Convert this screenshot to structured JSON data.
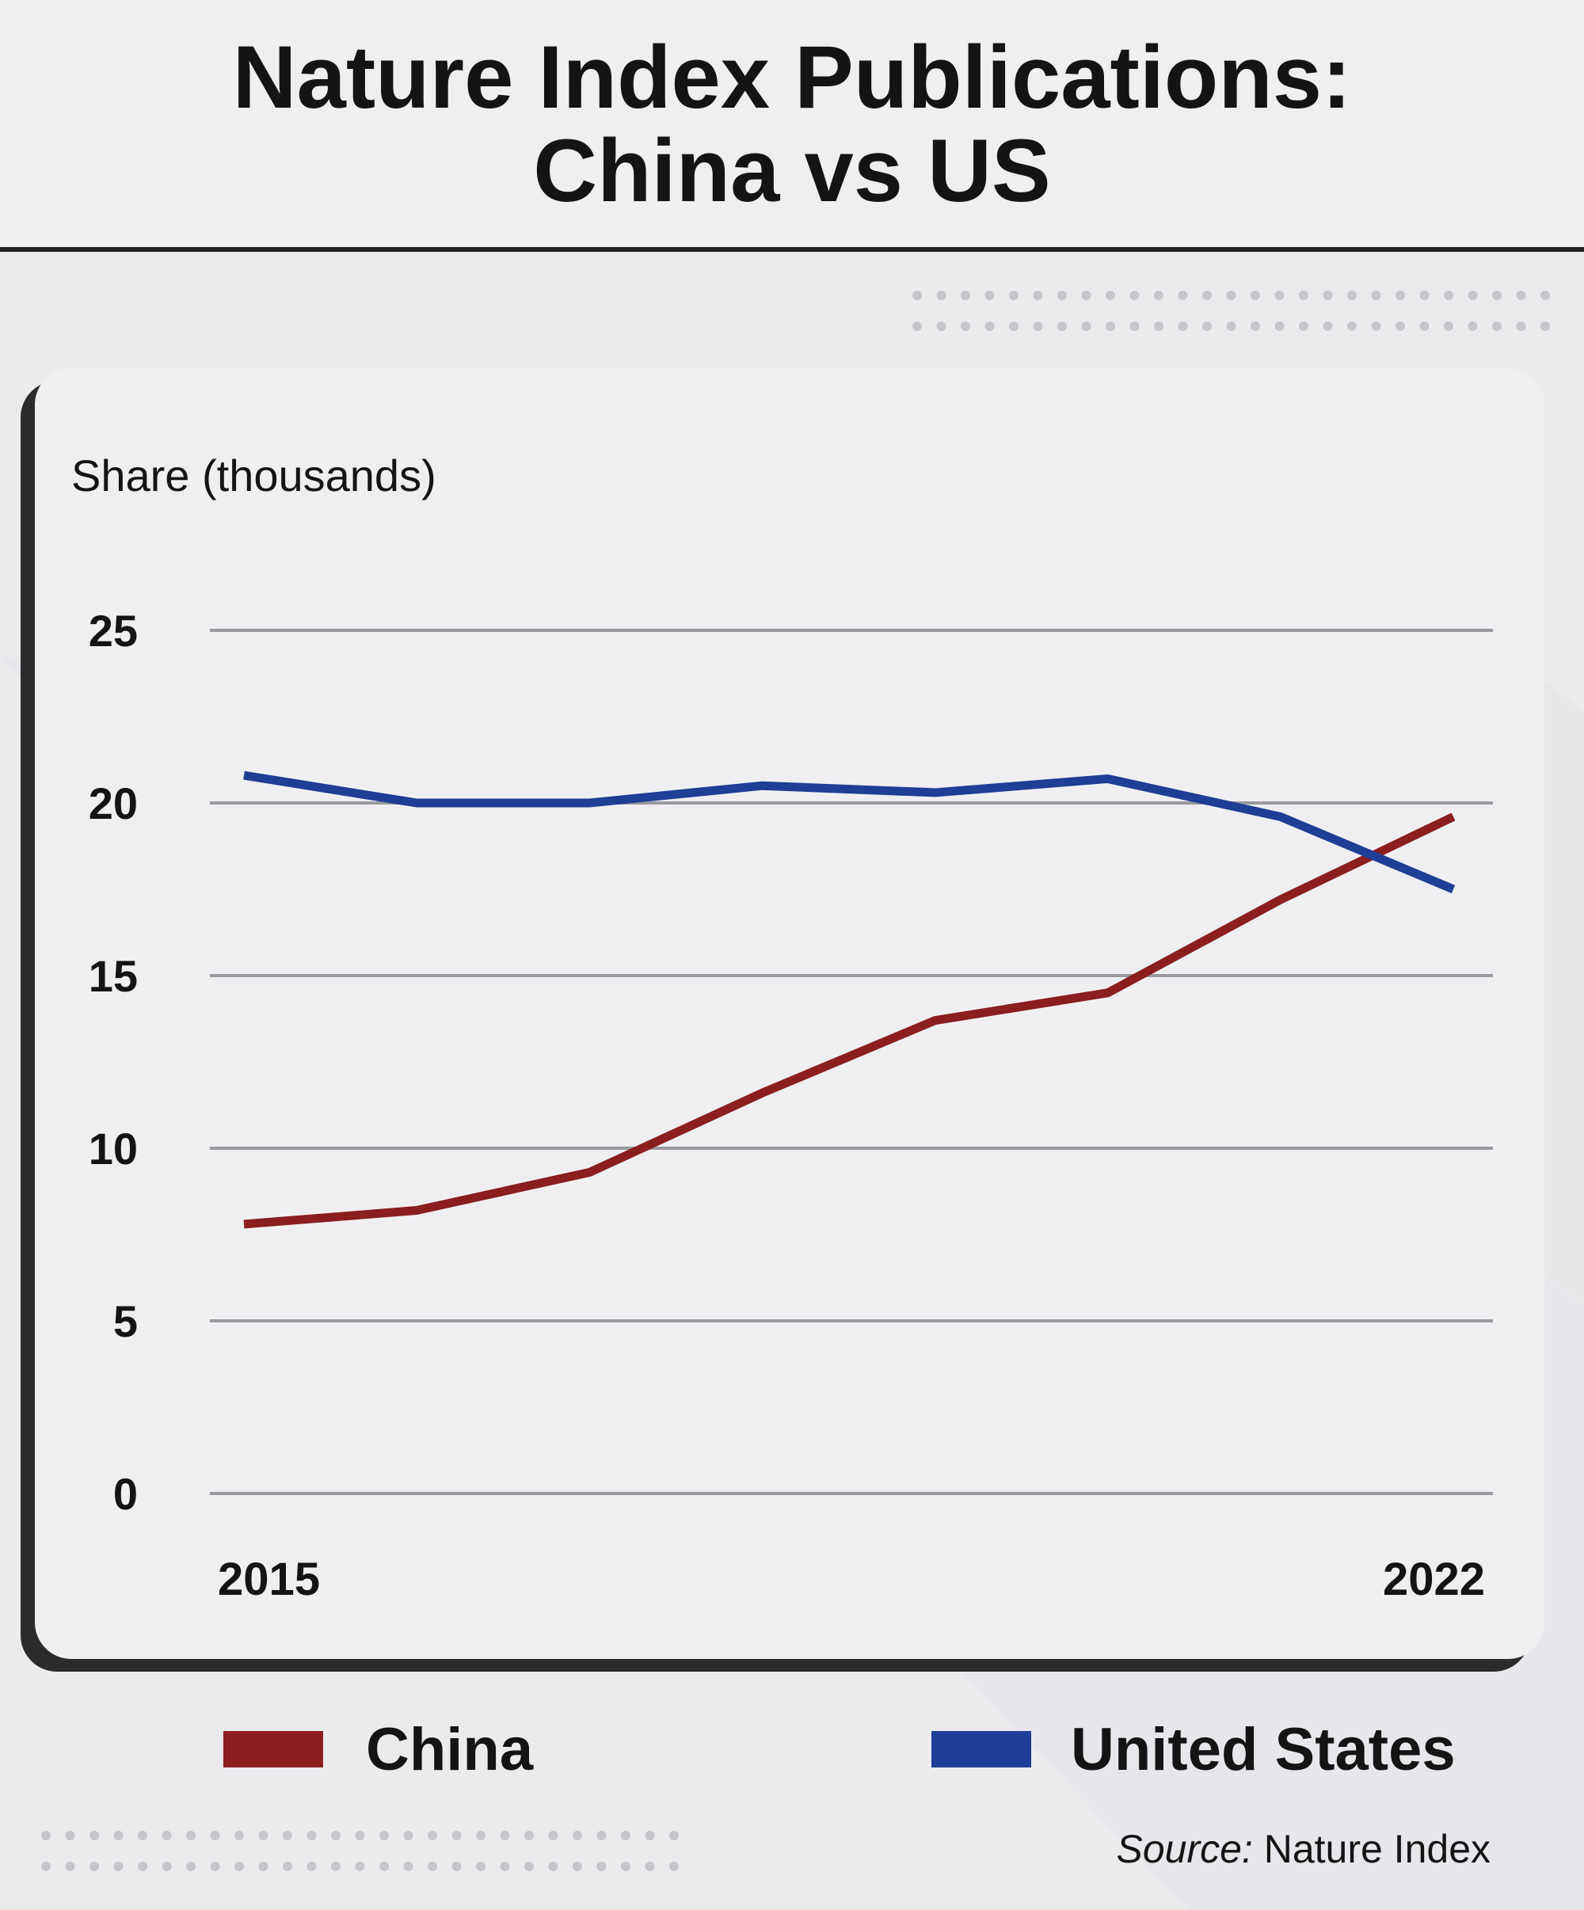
{
  "title_lines": [
    "Nature Index Publications:",
    "China vs US"
  ],
  "colors": {
    "china": "#8b1e1e",
    "united_states": "#1f3e96",
    "grid": "#9a9a9e",
    "text": "#141414"
  },
  "chart_data": {
    "type": "line",
    "title": "Nature Index Publications: China vs US",
    "ylabel": "Share (thousands)",
    "ylim": [
      0,
      25
    ],
    "yticks": [
      0,
      5,
      10,
      15,
      20,
      25
    ],
    "x_tick_labels": [
      "2015",
      "2022"
    ],
    "x": [
      2015,
      2016,
      2017,
      2018,
      2019,
      2020,
      2021,
      2022
    ],
    "grid": true,
    "legend_position": "bottom",
    "series": [
      {
        "name": "China",
        "color": "#8b1e1e",
        "values": [
          7.8,
          8.2,
          9.3,
          11.6,
          13.7,
          14.5,
          17.2,
          19.6
        ]
      },
      {
        "name": "United States",
        "color": "#1f3e96",
        "values": [
          20.8,
          20.0,
          20.0,
          20.5,
          20.3,
          20.7,
          19.6,
          17.5
        ]
      }
    ]
  },
  "legend": {
    "china": "China",
    "united_states": "United States"
  },
  "source": {
    "prefix": "Source:",
    "text": " Nature Index"
  }
}
